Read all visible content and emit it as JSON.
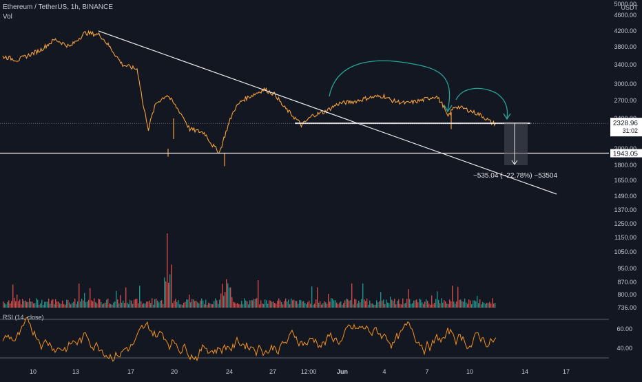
{
  "header": {
    "title": "Ethereum / TetherUS, 1h, BINANCE",
    "volume_label": "Vol",
    "currency": "USDT"
  },
  "colors": {
    "background": "#131722",
    "text": "#c7cad1",
    "candle": "#f7a23b",
    "white_lines": "#e6e6e6",
    "green_arrow": "#26a69a",
    "vol_up": "#26a69a",
    "vol_down": "#ef5350",
    "rsi": "#f7931a",
    "price_tag_bg": "#ffffff",
    "price_tag_text": "#131722",
    "measure_box": "#4a4e59"
  },
  "chart_data": {
    "type": "candlestick",
    "price_axis_ticks": [
      "5000.00",
      "4600.00",
      "4200.00",
      "3800.00",
      "3400.00",
      "3000.00",
      "2700.00",
      "2400.00",
      "2000.00",
      "1800.00",
      "1650.00",
      "1490.00",
      "1370.00",
      "1250.00",
      "1150.00",
      "1050.00",
      "950.00",
      "870.00",
      "800.00",
      "736.00"
    ],
    "time_axis_ticks": [
      "10",
      "13",
      "17",
      "20",
      "24",
      "27",
      "12:00",
      "Jun",
      "4",
      "7",
      "10",
      "14",
      "17"
    ],
    "price_path": [
      {
        "x": 3,
        "y": 3580
      },
      {
        "x": 5,
        "y": 3500
      },
      {
        "x": 8,
        "y": 3720
      },
      {
        "x": 10,
        "y": 3980
      },
      {
        "x": 12,
        "y": 3800
      },
      {
        "x": 14,
        "y": 4150
      },
      {
        "x": 16,
        "y": 4100
      },
      {
        "x": 17,
        "y": 3870
      },
      {
        "x": 19,
        "y": 3400
      },
      {
        "x": 21,
        "y": 3300
      },
      {
        "x": 21.8,
        "y": 2600
      },
      {
        "x": 22.5,
        "y": 2250
      },
      {
        "x": 23.5,
        "y": 2650
      },
      {
        "x": 25,
        "y": 2800
      },
      {
        "x": 27,
        "y": 2450
      },
      {
        "x": 28,
        "y": 2250
      },
      {
        "x": 30,
        "y": 2200
      },
      {
        "x": 31,
        "y": 2050
      },
      {
        "x": 32,
        "y": 1950
      },
      {
        "x": 33,
        "y": 2250
      },
      {
        "x": 34,
        "y": 2550
      },
      {
        "x": 35,
        "y": 2700
      },
      {
        "x": 36.5,
        "y": 2800
      },
      {
        "x": 38,
        "y": 2900
      },
      {
        "x": 39.5,
        "y": 2800
      },
      {
        "x": 40.5,
        "y": 2600
      },
      {
        "x": 42,
        "y": 2420
      },
      {
        "x": 43,
        "y": 2300
      },
      {
        "x": 44.5,
        "y": 2450
      },
      {
        "x": 46,
        "y": 2500
      },
      {
        "x": 48,
        "y": 2650
      },
      {
        "x": 50,
        "y": 2680
      },
      {
        "x": 52,
        "y": 2750
      },
      {
        "x": 54,
        "y": 2780
      },
      {
        "x": 55,
        "y": 2700
      },
      {
        "x": 57,
        "y": 2650
      },
      {
        "x": 59,
        "y": 2700
      },
      {
        "x": 61,
        "y": 2780
      },
      {
        "x": 62,
        "y": 2600
      },
      {
        "x": 62.5,
        "y": 2420
      },
      {
        "x": 63.5,
        "y": 2600
      },
      {
        "x": 65,
        "y": 2550
      },
      {
        "x": 67,
        "y": 2450
      },
      {
        "x": 68.5,
        "y": 2330
      }
    ],
    "price_annotations": {
      "current_price": "2328.96",
      "countdown": "31:02",
      "support_level": "1943.05",
      "measure_text": "−535.04 (−22.78%) −53504"
    },
    "volume": {
      "range": [
        736,
        1150
      ],
      "spikes": [
        {
          "x": 22,
          "value": 1150
        },
        {
          "x": 29,
          "value": 1000
        }
      ]
    },
    "rsi": {
      "label": "RSI (14, close)",
      "ticks": [
        "60.00",
        "40.00"
      ],
      "upper_band": 70,
      "lower_band": 30
    },
    "drawings": [
      "descending trendline",
      "horizontal support line at 1943.05",
      "horizontal resistance at 2330",
      "green arc arrow",
      "measure box"
    ]
  }
}
